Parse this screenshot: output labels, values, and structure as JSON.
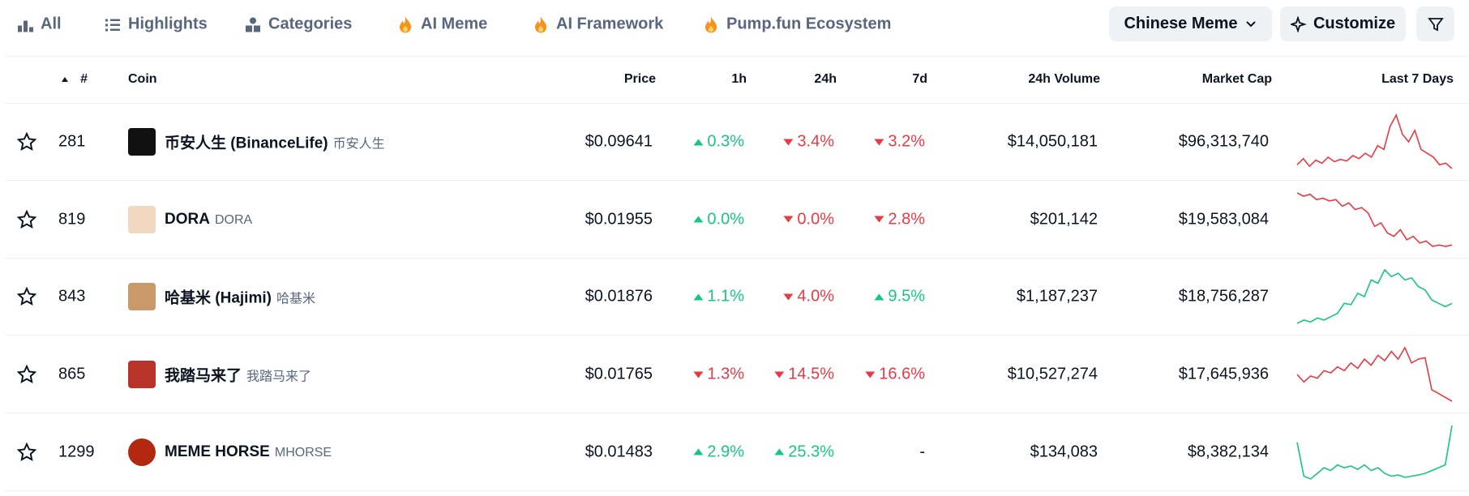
{
  "tabs": [
    "All",
    "Highlights",
    "Categories",
    "AI Meme",
    "AI Framework",
    "Pump.fun Ecosystem"
  ],
  "buttons": {
    "category": "Chinese Meme",
    "customize": "Customize"
  },
  "columns": [
    "#",
    "Coin",
    "Price",
    "1h",
    "24h",
    "7d",
    "24h Volume",
    "Market Cap",
    "Last 7 Days"
  ],
  "rows": [
    {
      "rank": 281,
      "name": "币安人生 (BinanceLife)",
      "symbol": "币安人生",
      "price": "$0.09641",
      "change_1h": {
        "text": "0.3%",
        "dir": "up"
      },
      "change_24h": {
        "text": "3.4%",
        "dir": "down"
      },
      "change_7d": {
        "text": "3.2%",
        "dir": "down"
      },
      "volume": "$14,050,181",
      "market_cap": "$96,313,740",
      "sparkline": [
        20,
        28,
        18,
        26,
        22,
        30,
        24,
        27,
        25,
        32,
        28,
        35,
        30,
        45,
        40,
        70,
        85,
        60,
        50,
        65,
        40,
        35,
        30,
        20,
        22,
        15
      ],
      "sparkline_color": "#ea3943"
    },
    {
      "rank": 819,
      "name": "DORA",
      "symbol": "DORA",
      "price": "$0.01955",
      "change_1h": {
        "text": "0.0%",
        "dir": "up"
      },
      "change_24h": {
        "text": "0.0%",
        "dir": "down"
      },
      "change_7d": {
        "text": "2.8%",
        "dir": "down"
      },
      "volume": "$201,142",
      "market_cap": "$19,583,084",
      "sparkline": [
        90,
        85,
        88,
        80,
        82,
        78,
        80,
        70,
        75,
        65,
        68,
        60,
        40,
        45,
        30,
        25,
        35,
        20,
        25,
        15,
        18,
        10,
        12,
        10,
        12
      ],
      "sparkline_color": "#ea3943"
    },
    {
      "rank": 843,
      "name": "哈基米 (Hajimi)",
      "symbol": "哈基米",
      "price": "$0.01876",
      "change_1h": {
        "text": "1.1%",
        "dir": "up"
      },
      "change_24h": {
        "text": "4.0%",
        "dir": "down"
      },
      "change_7d": {
        "text": "9.5%",
        "dir": "up"
      },
      "volume": "$1,187,237",
      "market_cap": "$18,756,287",
      "sparkline": [
        10,
        15,
        12,
        18,
        15,
        20,
        25,
        40,
        38,
        55,
        50,
        75,
        70,
        90,
        80,
        85,
        75,
        78,
        65,
        60,
        45,
        40,
        35,
        40
      ],
      "sparkline_color": "#16c784"
    },
    {
      "rank": 865,
      "name": "我踏马来了",
      "symbol": "我踏马来了",
      "price": "$0.01765",
      "change_1h": {
        "text": "1.3%",
        "dir": "down"
      },
      "change_24h": {
        "text": "14.5%",
        "dir": "down"
      },
      "change_7d": {
        "text": "16.6%",
        "dir": "down"
      },
      "volume": "$10,527,274",
      "market_cap": "$17,645,936",
      "sparkline": [
        40,
        30,
        38,
        35,
        45,
        42,
        50,
        45,
        55,
        48,
        60,
        52,
        65,
        58,
        70,
        60,
        75,
        55,
        60,
        62,
        20,
        15,
        10,
        5
      ],
      "sparkline_color": "#ea3943"
    },
    {
      "rank": 1299,
      "name": "MEME HORSE",
      "symbol": "MHORSE",
      "price": "$0.01483",
      "change_1h": {
        "text": "2.9%",
        "dir": "up"
      },
      "change_24h": {
        "text": "25.3%",
        "dir": "up"
      },
      "change_7d": {
        "text": "-",
        "dir": null
      },
      "volume": "$134,083",
      "market_cap": "$8,382,134",
      "sparkline": [
        70,
        10,
        5,
        15,
        25,
        20,
        30,
        25,
        28,
        22,
        30,
        20,
        25,
        15,
        10,
        12,
        8,
        10,
        12,
        15,
        20,
        25,
        30,
        100
      ],
      "sparkline_color": "#16c784"
    }
  ]
}
